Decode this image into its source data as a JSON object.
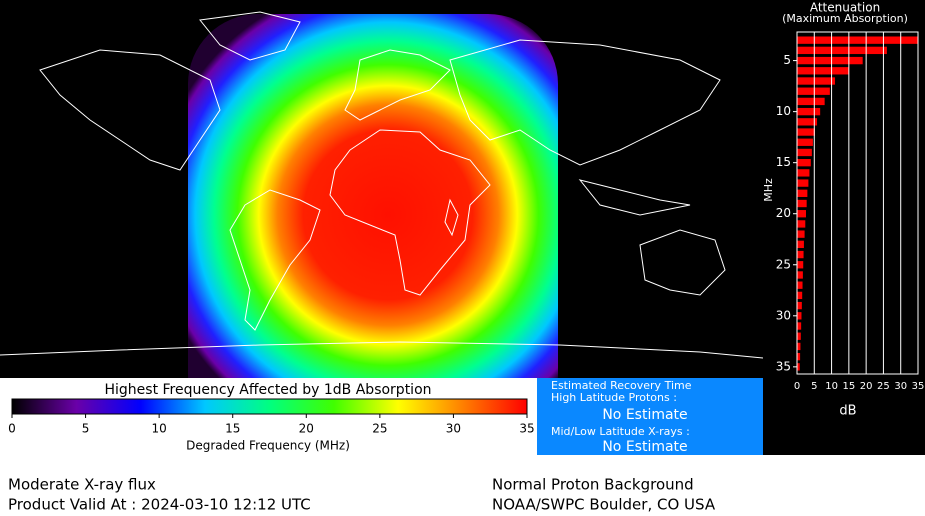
{
  "map": {
    "legend": {
      "title": "Highest Frequency Affected by 1dB Absorption",
      "xlabel": "Degraded Frequency (MHz)",
      "xlim": [
        0,
        35
      ],
      "xticks": [
        0,
        5,
        10,
        15,
        20,
        25,
        30,
        35
      ],
      "colors": [
        "#000000",
        "#6a00a8",
        "#0000ff",
        "#00c8ff",
        "#00ff80",
        "#40ff00",
        "#ffff00",
        "#ff8000",
        "#ff0000"
      ]
    }
  },
  "recovery": {
    "title": "Estimated Recovery Time",
    "high_label": "High Latitude Protons :",
    "high_value": "No Estimate",
    "mid_label": "Mid/Low Latitude X-rays :",
    "mid_value": "No Estimate"
  },
  "chart_data": {
    "type": "bar",
    "title": "Attenuation",
    "subtitle": "(Maximum Absorption)",
    "ylabel": "MHz",
    "xlabel": "dB",
    "color": "#ff0000",
    "y": [
      3,
      4,
      5,
      6,
      7,
      8,
      9,
      10,
      11,
      12,
      13,
      14,
      15,
      16,
      17,
      18,
      19,
      20,
      21,
      22,
      23,
      24,
      25,
      26,
      27,
      28,
      29,
      30,
      31,
      32,
      33,
      34,
      35
    ],
    "values": [
      35,
      26,
      19,
      15,
      11,
      9.5,
      8,
      6.7,
      5.8,
      5.2,
      4.6,
      4.3,
      4,
      3.6,
      3.3,
      3,
      2.8,
      2.6,
      2.4,
      2.2,
      2,
      1.9,
      1.8,
      1.7,
      1.6,
      1.5,
      1.4,
      1.3,
      1.2,
      1.1,
      1,
      0.9,
      0.8
    ],
    "xlim": [
      0,
      35
    ],
    "xticks": [
      0,
      5,
      10,
      15,
      20,
      25,
      30,
      35
    ],
    "ylim": [
      2.2,
      35.7
    ],
    "yticks": [
      5,
      10,
      15,
      20,
      25,
      30,
      35
    ],
    "grid": true
  },
  "footer": {
    "left": [
      "Moderate X-ray flux",
      "Product Valid At : 2024-03-10 12:12 UTC"
    ],
    "right": [
      "Normal Proton Background",
      "NOAA/SWPC Boulder, CO USA"
    ]
  }
}
